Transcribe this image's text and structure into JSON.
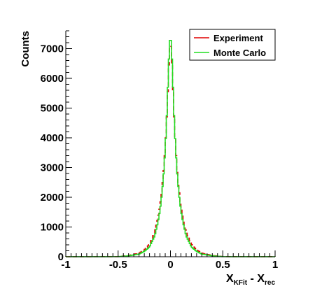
{
  "chart_data": {
    "type": "line",
    "title": "",
    "xlabel": {
      "main": "X",
      "sub1": "KFit",
      "mid": " - X",
      "sub2": "rec"
    },
    "ylabel": "Counts",
    "xlim": [
      -1,
      1
    ],
    "ylim": [
      0,
      7600
    ],
    "x_ticks": [
      "-1",
      "-0.5",
      "0",
      "0.5",
      "1"
    ],
    "y_ticks": [
      "0",
      "1000",
      "2000",
      "3000",
      "4000",
      "5000",
      "6000",
      "7000"
    ],
    "legend_position": "top-right",
    "colors": {
      "experiment": "#e00000",
      "monte_carlo": "#22dd22"
    },
    "series": [
      {
        "name": "Experiment",
        "style": "dashed-step",
        "points": [
          [
            -1.0,
            0
          ],
          [
            -0.5,
            5
          ],
          [
            -0.4,
            40
          ],
          [
            -0.3,
            120
          ],
          [
            -0.25,
            230
          ],
          [
            -0.2,
            420
          ],
          [
            -0.15,
            830
          ],
          [
            -0.12,
            1300
          ],
          [
            -0.1,
            1700
          ],
          [
            -0.08,
            2300
          ],
          [
            -0.06,
            3100
          ],
          [
            -0.04,
            4300
          ],
          [
            -0.03,
            5100
          ],
          [
            -0.02,
            6000
          ],
          [
            -0.01,
            6900
          ],
          [
            0.0,
            7250
          ],
          [
            0.01,
            6900
          ],
          [
            0.02,
            6000
          ],
          [
            0.03,
            5100
          ],
          [
            0.04,
            4300
          ],
          [
            0.06,
            3100
          ],
          [
            0.08,
            2300
          ],
          [
            0.1,
            1700
          ],
          [
            0.12,
            1300
          ],
          [
            0.15,
            830
          ],
          [
            0.2,
            420
          ],
          [
            0.25,
            230
          ],
          [
            0.3,
            120
          ],
          [
            0.4,
            40
          ],
          [
            0.5,
            5
          ],
          [
            1.0,
            0
          ]
        ]
      },
      {
        "name": "Monte Carlo",
        "style": "solid-step",
        "points": [
          [
            -1.0,
            0
          ],
          [
            -0.5,
            3
          ],
          [
            -0.4,
            30
          ],
          [
            -0.3,
            90
          ],
          [
            -0.25,
            180
          ],
          [
            -0.2,
            330
          ],
          [
            -0.15,
            700
          ],
          [
            -0.12,
            1150
          ],
          [
            -0.1,
            1550
          ],
          [
            -0.08,
            2150
          ],
          [
            -0.06,
            3000
          ],
          [
            -0.04,
            4300
          ],
          [
            -0.03,
            5200
          ],
          [
            -0.02,
            6200
          ],
          [
            -0.01,
            7100
          ],
          [
            0.0,
            7450
          ],
          [
            0.01,
            7100
          ],
          [
            0.02,
            6200
          ],
          [
            0.03,
            5200
          ],
          [
            0.04,
            4300
          ],
          [
            0.06,
            3000
          ],
          [
            0.08,
            2150
          ],
          [
            0.1,
            1550
          ],
          [
            0.12,
            1150
          ],
          [
            0.15,
            700
          ],
          [
            0.2,
            330
          ],
          [
            0.25,
            180
          ],
          [
            0.3,
            90
          ],
          [
            0.4,
            30
          ],
          [
            0.5,
            3
          ],
          [
            1.0,
            0
          ]
        ]
      }
    ]
  }
}
